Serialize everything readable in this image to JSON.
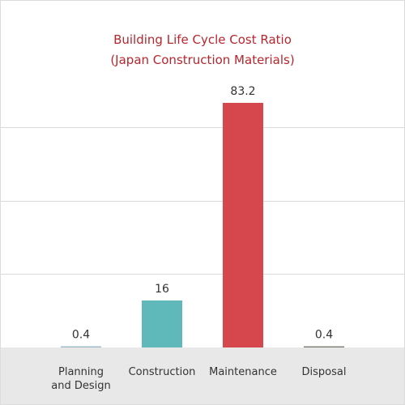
{
  "chart_data": {
    "type": "bar",
    "title": [
      "Building Life Cycle Cost Ratio",
      "(Japan Construction Materials)"
    ],
    "xlabel": "",
    "ylabel": "",
    "ylim": [
      0,
      100
    ],
    "grid": true,
    "categories": [
      [
        "Planning",
        "and Design"
      ],
      [
        "Construction"
      ],
      [
        "Maintenance"
      ],
      [
        "Disposal"
      ]
    ],
    "values": [
      0.4,
      16,
      83.2,
      0.4
    ],
    "value_labels": [
      "0.4",
      "16",
      "83.2",
      "0.4"
    ],
    "colors": [
      "#9dbbc6",
      "#5fb9ba",
      "#d5474c",
      "#7d7d74"
    ]
  },
  "colors": {
    "title": "#b8252c",
    "grid": "#d9d9d9",
    "floor_band": "#e8e8e8"
  }
}
